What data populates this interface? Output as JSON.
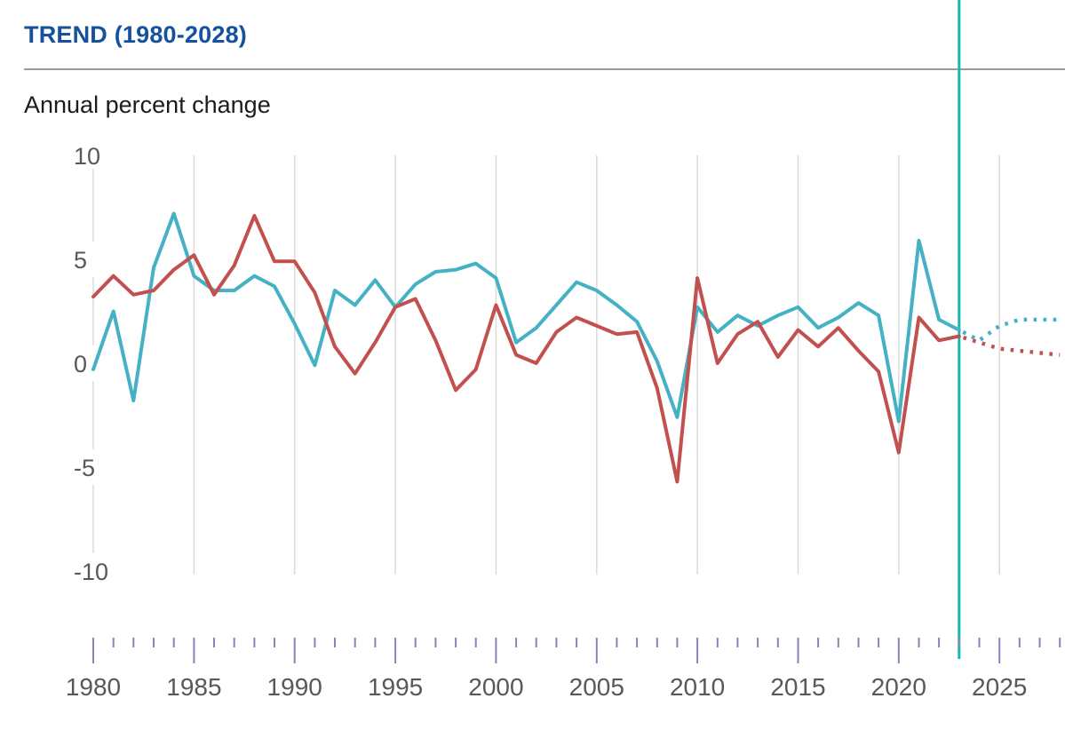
{
  "header": {
    "title": "TREND (1980-2028)",
    "subtitle": "Annual percent change"
  },
  "chart_data": {
    "type": "line",
    "title": "TREND (1980-2028)",
    "ylabel": "Annual percent change",
    "x_start": 1980,
    "x_end": 2028,
    "projection_start_year": 2023,
    "ylim": [
      -10,
      10
    ],
    "y_ticks": [
      10,
      5,
      0,
      -5,
      -10
    ],
    "x_major_ticks": [
      1980,
      1985,
      1990,
      1995,
      2000,
      2005,
      2010,
      2015,
      2020,
      2025
    ],
    "x_minor_tick_step": 1,
    "grid": "vertical-only",
    "legend_position": "none",
    "projection_style": "dotted",
    "series": [
      {
        "name": "teal-series",
        "color": "#45b1c4",
        "years": [
          1980,
          1981,
          1982,
          1983,
          1984,
          1985,
          1986,
          1987,
          1988,
          1989,
          1990,
          1991,
          1992,
          1993,
          1994,
          1995,
          1996,
          1997,
          1998,
          1999,
          2000,
          2001,
          2002,
          2003,
          2004,
          2005,
          2006,
          2007,
          2008,
          2009,
          2010,
          2011,
          2012,
          2013,
          2014,
          2015,
          2016,
          2017,
          2018,
          2019,
          2020,
          2021,
          2022,
          2023,
          2024,
          2025,
          2026,
          2027,
          2028
        ],
        "values": [
          -0.3,
          2.5,
          -1.8,
          4.6,
          7.2,
          4.2,
          3.5,
          3.5,
          4.2,
          3.7,
          1.9,
          -0.1,
          3.5,
          2.8,
          4.0,
          2.7,
          3.8,
          4.4,
          4.5,
          4.8,
          4.1,
          1.0,
          1.7,
          2.8,
          3.9,
          3.5,
          2.8,
          2.0,
          0.1,
          -2.6,
          2.7,
          1.5,
          2.3,
          1.8,
          2.3,
          2.7,
          1.7,
          2.2,
          2.9,
          2.3,
          -2.8,
          5.9,
          2.1,
          1.6,
          1.1,
          1.8,
          2.1,
          2.1,
          2.1
        ]
      },
      {
        "name": "red-series",
        "color": "#c1504f",
        "years": [
          1980,
          1981,
          1982,
          1983,
          1984,
          1985,
          1986,
          1987,
          1988,
          1989,
          1990,
          1991,
          1992,
          1993,
          1994,
          1995,
          1996,
          1997,
          1998,
          1999,
          2000,
          2001,
          2002,
          2003,
          2004,
          2005,
          2006,
          2007,
          2008,
          2009,
          2010,
          2011,
          2012,
          2013,
          2014,
          2015,
          2016,
          2017,
          2018,
          2019,
          2020,
          2021,
          2022,
          2023,
          2024,
          2025,
          2026,
          2027,
          2028
        ],
        "values": [
          3.2,
          4.2,
          3.3,
          3.5,
          4.5,
          5.2,
          3.3,
          4.7,
          7.1,
          4.9,
          4.9,
          3.4,
          0.8,
          -0.5,
          1.0,
          2.7,
          3.1,
          1.1,
          -1.3,
          -0.3,
          2.8,
          0.4,
          0.0,
          1.5,
          2.2,
          1.8,
          1.4,
          1.5,
          -1.2,
          -5.7,
          4.1,
          0.0,
          1.4,
          2.0,
          0.3,
          1.6,
          0.8,
          1.7,
          0.6,
          -0.4,
          -4.3,
          2.2,
          1.1,
          1.3,
          1.0,
          0.7,
          0.6,
          0.5,
          0.4
        ]
      }
    ]
  },
  "colors": {
    "title_blue": "#15519d",
    "divider_gray": "#9b9b9b",
    "gridline": "#dadada",
    "axis_tick": "#8585b8",
    "axis_label": "#58585a",
    "subtitle_text": "#1c1c1c",
    "projection_line": "#1ab8b2",
    "teal_series": "#45b1c4",
    "red_series": "#c1504f"
  }
}
